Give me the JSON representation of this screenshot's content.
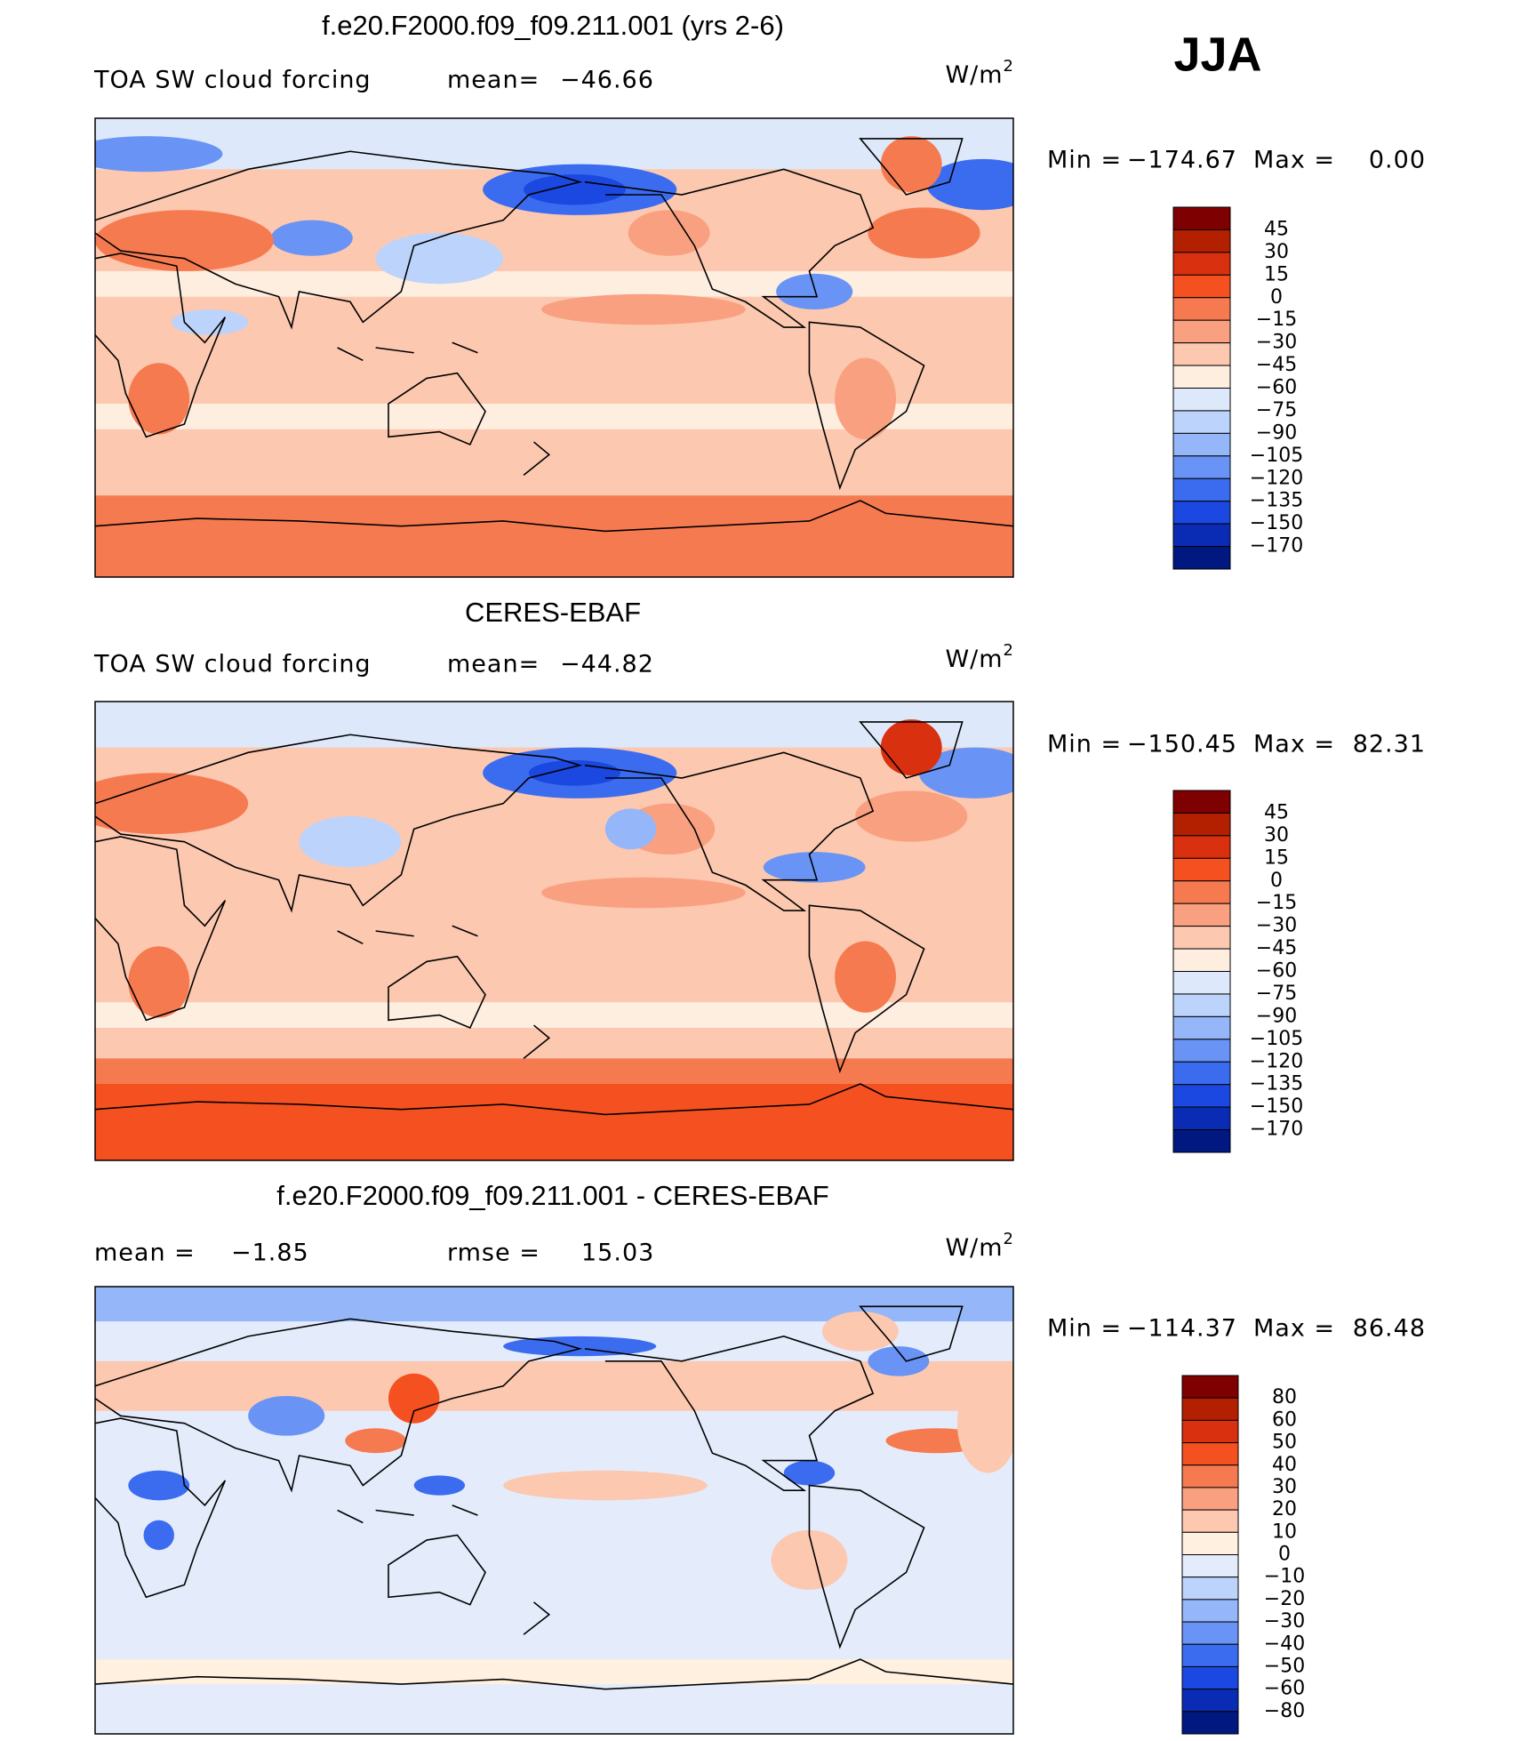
{
  "season": "JJA",
  "panels": [
    {
      "title": "f.e20.F2000.f09_f09.211.001 (yrs 2-6)",
      "left_label": "TOA SW cloud forcing",
      "stat1_label": "mean=",
      "stat1_value": "−46.66",
      "units": "W/m",
      "units_exponent": "2",
      "min_label": "Min =",
      "min": "−174.67",
      "max_label": "Max =",
      "max": "0.00",
      "colorbar": {
        "levels": [
          "45",
          "30",
          "15",
          "0",
          "−15",
          "−30",
          "−45",
          "−60",
          "−75",
          "−90",
          "−105",
          "−120",
          "−135",
          "−150",
          "−170"
        ],
        "colors": [
          "#7f0000",
          "#b22000",
          "#d93010",
          "#f55020",
          "#f67a50",
          "#f9a080",
          "#fcc8b0",
          "#feeee0",
          "#dde9fb",
          "#bcd3fb",
          "#95b6f8",
          "#6993f4",
          "#3b6cf0",
          "#1a48e0",
          "#0a2cb4",
          "#001880"
        ]
      }
    },
    {
      "title": "CERES-EBAF",
      "left_label": "TOA SW cloud forcing",
      "stat1_label": "mean=",
      "stat1_value": "−44.82",
      "units": "W/m",
      "units_exponent": "2",
      "min_label": "Min =",
      "min": "−150.45",
      "max_label": "Max =",
      "max": "82.31",
      "colorbar": {
        "levels": [
          "45",
          "30",
          "15",
          "0",
          "−15",
          "−30",
          "−45",
          "−60",
          "−75",
          "−90",
          "−105",
          "−120",
          "−135",
          "−150",
          "−170"
        ],
        "colors": [
          "#7f0000",
          "#b22000",
          "#d93010",
          "#f55020",
          "#f67a50",
          "#f9a080",
          "#fcc8b0",
          "#feeee0",
          "#dde9fb",
          "#bcd3fb",
          "#95b6f8",
          "#6993f4",
          "#3b6cf0",
          "#1a48e0",
          "#0a2cb4",
          "#001880"
        ]
      }
    },
    {
      "title": "f.e20.F2000.f09_f09.211.001 - CERES-EBAF",
      "left_label": "mean =",
      "left_value": "−1.85",
      "stat1_label": "rmse =",
      "stat1_value": "15.03",
      "units": "W/m",
      "units_exponent": "2",
      "min_label": "Min =",
      "min": "−114.37",
      "max_label": "Max =",
      "max": "86.48",
      "colorbar": {
        "levels": [
          "80",
          "60",
          "50",
          "40",
          "30",
          "20",
          "10",
          "0",
          "−10",
          "−20",
          "−30",
          "−40",
          "−50",
          "−60",
          "−80"
        ],
        "colors": [
          "#7f0000",
          "#b22000",
          "#d93010",
          "#f55020",
          "#f67a50",
          "#f9a080",
          "#fcc8b0",
          "#fff0e0",
          "#e4ecfc",
          "#bcd3fb",
          "#95b6f8",
          "#6993f4",
          "#3b6cf0",
          "#1a48e0",
          "#0a2cb4",
          "#001880"
        ]
      }
    }
  ]
}
